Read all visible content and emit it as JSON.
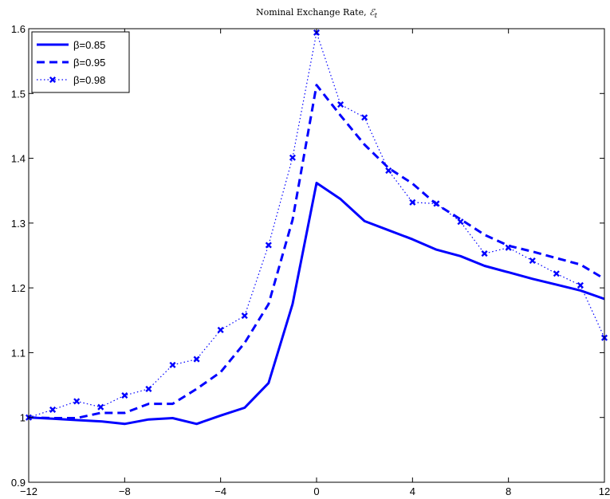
{
  "chart_data": {
    "type": "line",
    "title": "Nominal Exchange Rate, ",
    "title_symbol": "ℰ",
    "title_subscript": "t",
    "xlabel": "",
    "ylabel": "",
    "xlim": [
      -12,
      12
    ],
    "ylim": [
      0.9,
      1.6
    ],
    "xticks": [
      -12,
      -8,
      -4,
      0,
      4,
      8,
      12
    ],
    "xtick_labels": [
      "−12",
      "−8",
      "−4",
      "0",
      "4",
      "8",
      "12"
    ],
    "yticks": [
      0.9,
      1.0,
      1.1,
      1.2,
      1.3,
      1.4,
      1.5,
      1.6
    ],
    "ytick_labels": [
      "0.9",
      "1",
      "1.1",
      "1.2",
      "1.3",
      "1.4",
      "1.5",
      "1.6"
    ],
    "grid": false,
    "legend_position": "top-left",
    "x": [
      -12,
      -11,
      -10,
      -9,
      -8,
      -7,
      -6,
      -5,
      -4,
      -3,
      -2,
      -1,
      0,
      1,
      2,
      3,
      4,
      5,
      6,
      7,
      8,
      9,
      10,
      11,
      12
    ],
    "series": [
      {
        "name": "β=0.85",
        "style": "solid",
        "color": "#0000ff",
        "values": [
          1.0,
          0.998,
          0.996,
          0.994,
          0.99,
          0.997,
          0.999,
          0.99,
          1.003,
          1.015,
          1.053,
          1.175,
          1.362,
          1.337,
          1.303,
          1.289,
          1.275,
          1.259,
          1.249,
          1.234,
          1.224,
          1.214,
          1.205,
          1.196,
          1.183
        ]
      },
      {
        "name": "β=0.95",
        "style": "dashed",
        "color": "#0000ff",
        "values": [
          1.0,
          0.999,
          0.999,
          1.007,
          1.007,
          1.021,
          1.021,
          1.044,
          1.07,
          1.115,
          1.175,
          1.305,
          1.513,
          1.466,
          1.421,
          1.385,
          1.361,
          1.329,
          1.306,
          1.282,
          1.265,
          1.256,
          1.246,
          1.236,
          1.214
        ]
      },
      {
        "name": "β=0.98",
        "style": "dotted-x",
        "color": "#0000ff",
        "values": [
          1.0,
          1.012,
          1.025,
          1.016,
          1.034,
          1.044,
          1.081,
          1.09,
          1.135,
          1.157,
          1.266,
          1.401,
          1.594,
          1.483,
          1.463,
          1.381,
          1.332,
          1.33,
          1.302,
          1.253,
          1.262,
          1.242,
          1.222,
          1.204,
          1.123
        ]
      }
    ]
  }
}
